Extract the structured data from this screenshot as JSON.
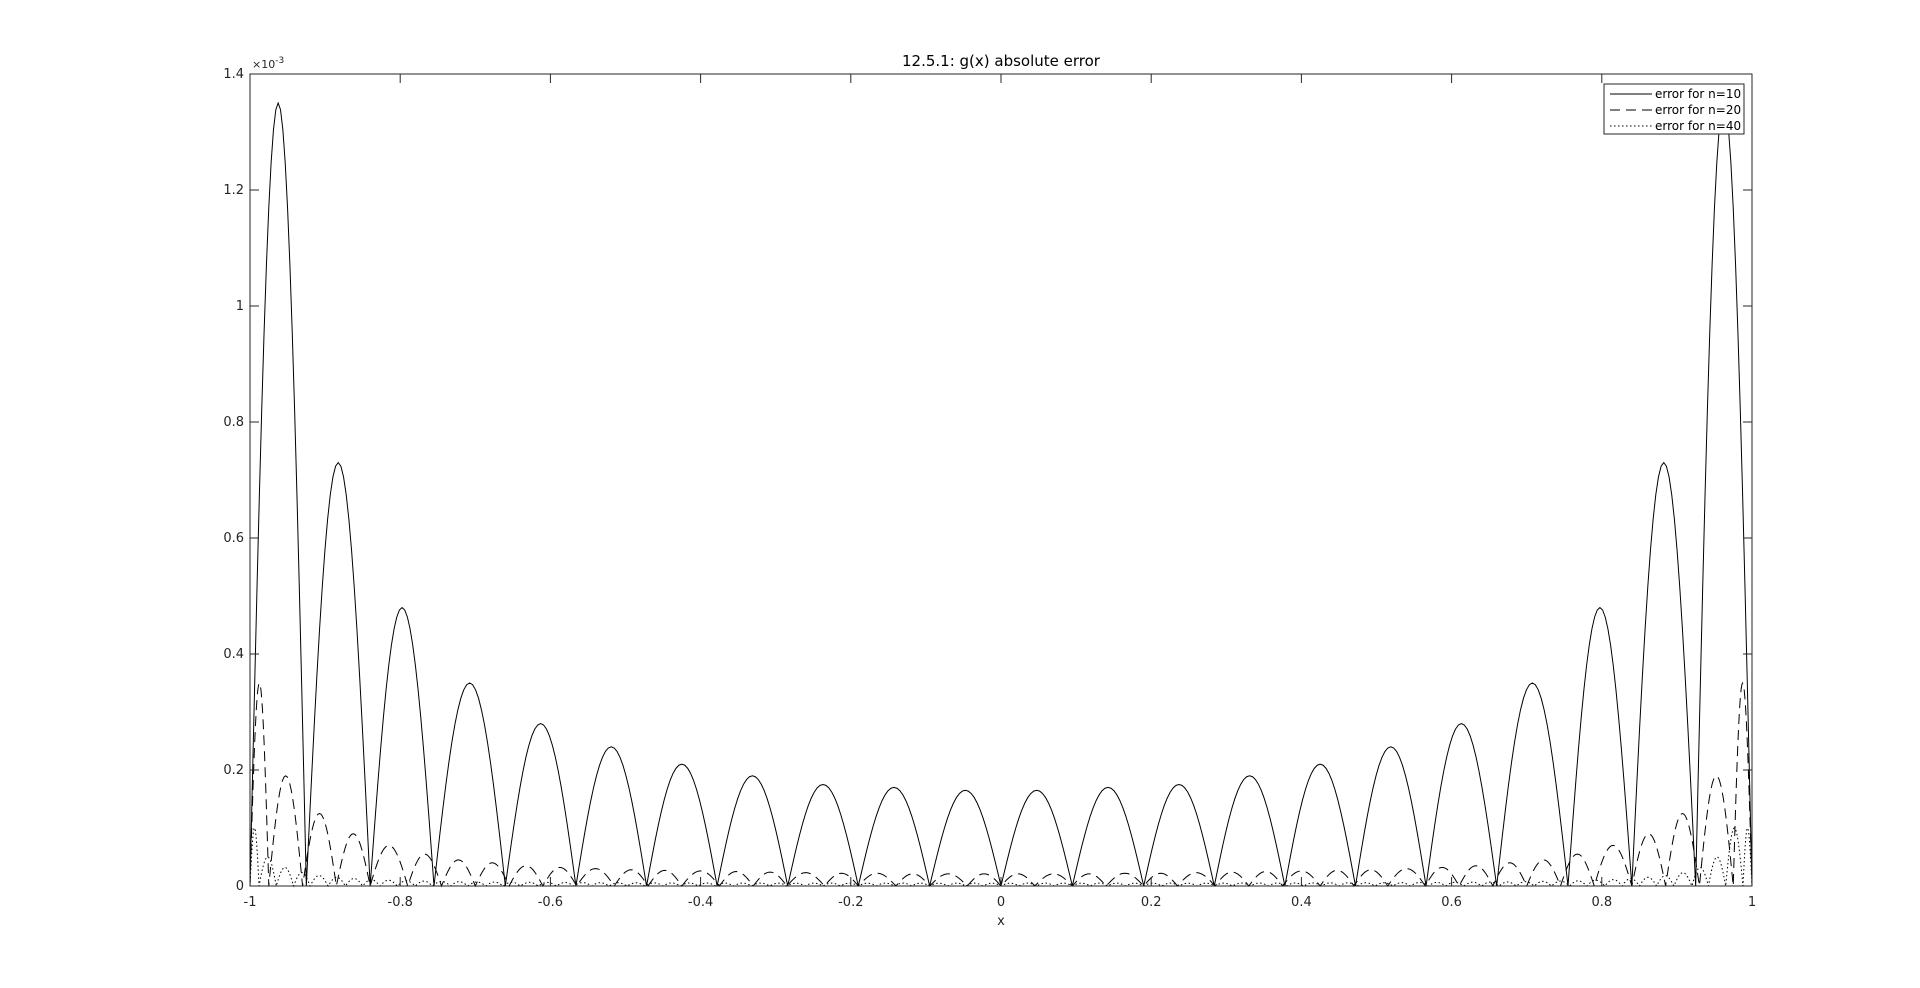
{
  "chart_data": {
    "type": "line",
    "title": "12.5.1: g(x) absolute error",
    "xlabel": "x",
    "ylabel": "",
    "xlim": [
      -1,
      1
    ],
    "ylim": [
      0,
      0.0014
    ],
    "y_exponent_label": "×10",
    "y_exponent_power": "-3",
    "x_ticks": [
      -1,
      -0.8,
      -0.6,
      -0.4,
      -0.2,
      0,
      0.2,
      0.4,
      0.6,
      0.8,
      1
    ],
    "x_tick_labels": [
      "-1",
      "-0.8",
      "-0.6",
      "-0.4",
      "-0.2",
      "0",
      "0.2",
      "0.4",
      "0.6",
      "0.8",
      "1"
    ],
    "y_ticks": [
      0,
      0.0002,
      0.0004,
      0.0006,
      0.0008,
      0.001,
      0.0012,
      0.0014
    ],
    "y_tick_labels": [
      "0",
      "0.2",
      "0.4",
      "0.6",
      "0.8",
      "1",
      "1.2",
      "1.4"
    ],
    "grid": false,
    "legend_position": "top-right",
    "series": [
      {
        "name": "error for n=10",
        "style": "solid",
        "zeros": [
          -1,
          -0.925,
          -0.84,
          -0.755,
          -0.66,
          -0.566,
          -0.472,
          -0.378,
          -0.284,
          -0.19,
          -0.095,
          0,
          0.095,
          0.19,
          0.284,
          0.378,
          0.472,
          0.566,
          0.66,
          0.755,
          0.84,
          0.925,
          1
        ],
        "peaks": [
          0.00135,
          0.00073,
          0.00048,
          0.00035,
          0.00028,
          0.00024,
          0.00021,
          0.00019,
          0.000175,
          0.00017,
          0.000165,
          0.000165,
          0.00017,
          0.000175,
          0.00019,
          0.00021,
          0.00024,
          0.00028,
          0.00035,
          0.00048,
          0.00073,
          0.00135
        ]
      },
      {
        "name": "error for n=20",
        "style": "dashed",
        "zeros": [
          -1,
          -0.975,
          -0.93,
          -0.885,
          -0.84,
          -0.79,
          -0.745,
          -0.7,
          -0.655,
          -0.61,
          -0.565,
          -0.515,
          -0.47,
          -0.425,
          -0.375,
          -0.33,
          -0.285,
          -0.235,
          -0.19,
          -0.14,
          -0.095,
          -0.045,
          0,
          0.045,
          0.095,
          0.14,
          0.19,
          0.235,
          0.285,
          0.33,
          0.375,
          0.425,
          0.47,
          0.515,
          0.565,
          0.61,
          0.655,
          0.7,
          0.745,
          0.79,
          0.84,
          0.885,
          0.93,
          0.975,
          1
        ],
        "peaks": [
          0.00035,
          0.00019,
          0.000125,
          9e-05,
          7e-05,
          5.5e-05,
          4.5e-05,
          4e-05,
          3.5e-05,
          3.2e-05,
          3e-05,
          2.8e-05,
          2.7e-05,
          2.6e-05,
          2.5e-05,
          2.4e-05,
          2.3e-05,
          2.2e-05,
          2.2e-05,
          2.1e-05,
          2.1e-05,
          2.1e-05,
          2.1e-05,
          2.1e-05,
          2.1e-05,
          2.2e-05,
          2.2e-05,
          2.3e-05,
          2.4e-05,
          2.5e-05,
          2.6e-05,
          2.7e-05,
          2.8e-05,
          3e-05,
          3.2e-05,
          3.5e-05,
          4e-05,
          4.5e-05,
          5.5e-05,
          7e-05,
          9e-05,
          0.000125,
          0.00019,
          0.00035
        ]
      },
      {
        "name": "error for n=40",
        "style": "dotted",
        "zeros": [
          -1,
          -0.988,
          -0.965,
          -0.942,
          -0.92,
          -0.896,
          -0.873,
          -0.85,
          -0.827,
          -0.804,
          -0.78,
          -0.757,
          -0.733,
          -0.71,
          -0.686,
          -0.663,
          -0.64,
          -0.616,
          -0.592,
          -0.569,
          -0.545,
          -0.522,
          -0.498,
          -0.474,
          -0.45,
          -0.427,
          -0.403,
          -0.38,
          -0.356,
          -0.332,
          -0.308,
          -0.285,
          -0.261,
          -0.237,
          -0.214,
          -0.19,
          -0.166,
          -0.142,
          -0.119,
          -0.095,
          -0.071,
          -0.047,
          -0.024,
          0,
          0.024,
          0.047,
          0.071,
          0.095,
          0.119,
          0.142,
          0.166,
          0.19,
          0.214,
          0.237,
          0.261,
          0.285,
          0.308,
          0.332,
          0.356,
          0.38,
          0.403,
          0.427,
          0.45,
          0.474,
          0.498,
          0.522,
          0.545,
          0.569,
          0.592,
          0.616,
          0.64,
          0.663,
          0.686,
          0.71,
          0.733,
          0.757,
          0.78,
          0.804,
          0.827,
          0.85,
          0.873,
          0.896,
          0.92,
          0.942,
          0.965,
          0.988,
          1
        ],
        "peaks": [
          0.0001,
          5e-05,
          3.2e-05,
          2.3e-05,
          1.8e-05,
          1.5e-05,
          1.3e-05,
          1.1e-05,
          1e-05,
          9e-06,
          8.5e-06,
          8e-06,
          7.5e-06,
          7e-06,
          6.8e-06,
          6.6e-06,
          6.4e-06,
          6.2e-06,
          6e-06,
          5.8e-06,
          5.7e-06,
          5.6e-06,
          5.5e-06,
          5.4e-06,
          5.3e-06,
          5.2e-06,
          5.2e-06,
          5.1e-06,
          5.1e-06,
          5e-06,
          5e-06,
          5e-06,
          5e-06,
          5e-06,
          5e-06,
          5e-06,
          5e-06,
          5e-06,
          5e-06,
          5e-06,
          5e-06,
          5e-06,
          5e-06,
          5e-06,
          5e-06,
          5e-06,
          5e-06,
          5e-06,
          5e-06,
          5e-06,
          5e-06,
          5e-06,
          5e-06,
          5e-06,
          5e-06,
          5e-06,
          5.1e-06,
          5.1e-06,
          5.2e-06,
          5.2e-06,
          5.3e-06,
          5.4e-06,
          5.5e-06,
          5.6e-06,
          5.7e-06,
          5.8e-06,
          6e-06,
          6.2e-06,
          6.4e-06,
          6.6e-06,
          6.8e-06,
          7e-06,
          7.5e-06,
          8e-06,
          8.5e-06,
          9e-06,
          1e-05,
          1.1e-05,
          1.3e-05,
          1.5e-05,
          1.8e-05,
          2.3e-05,
          3.2e-05,
          5e-05,
          0.0001
        ]
      }
    ]
  }
}
